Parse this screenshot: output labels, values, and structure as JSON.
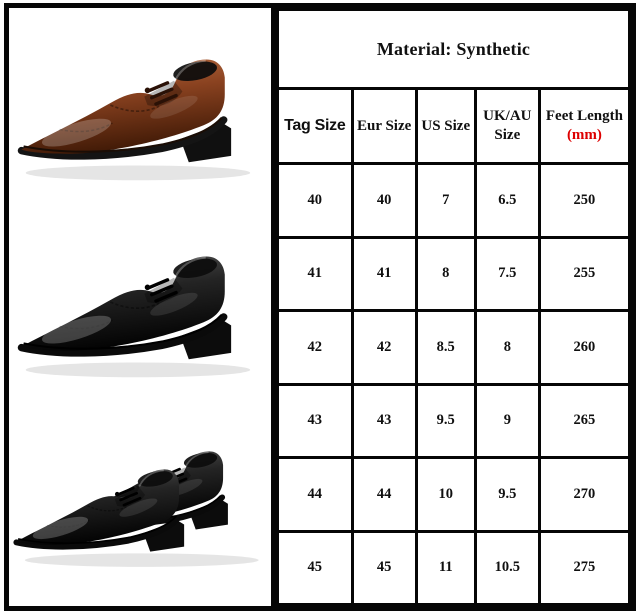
{
  "chart_data": {
    "type": "table",
    "title": "Material: Synthetic",
    "columns": [
      "Tag Size",
      "Eur Size",
      "US Size",
      "UK/AU Size",
      "Feet Length (mm)"
    ],
    "rows": [
      [
        "40",
        "40",
        "7",
        "6.5",
        "250"
      ],
      [
        "41",
        "41",
        "8",
        "7.5",
        "255"
      ],
      [
        "42",
        "42",
        "8.5",
        "8",
        "260"
      ],
      [
        "43",
        "43",
        "9.5",
        "9",
        "265"
      ],
      [
        "44",
        "44",
        "10",
        "9.5",
        "270"
      ],
      [
        "45",
        "45",
        "11",
        "10.5",
        "275"
      ]
    ],
    "layout_hints": {
      "grid": true,
      "header_rows": 2
    }
  },
  "material_header": "Material: Synthetic",
  "table_headers": {
    "tag": "Tag Size",
    "eur": "Eur Size",
    "us": "US Size",
    "ukau": "UK/AU Size",
    "feet": "Feet Length",
    "feet_unit": "(mm)"
  },
  "colors": {
    "frame_border": "#060606",
    "unit_red": "#dd0000",
    "brown_shoe": "#8a4220",
    "black_shoe": "#1c1c1c"
  },
  "photos": [
    {
      "label": "brown-leather-derby-shoe"
    },
    {
      "label": "black-leather-derby-shoe"
    },
    {
      "label": "pair-of-black-leather-derby-shoes"
    }
  ]
}
